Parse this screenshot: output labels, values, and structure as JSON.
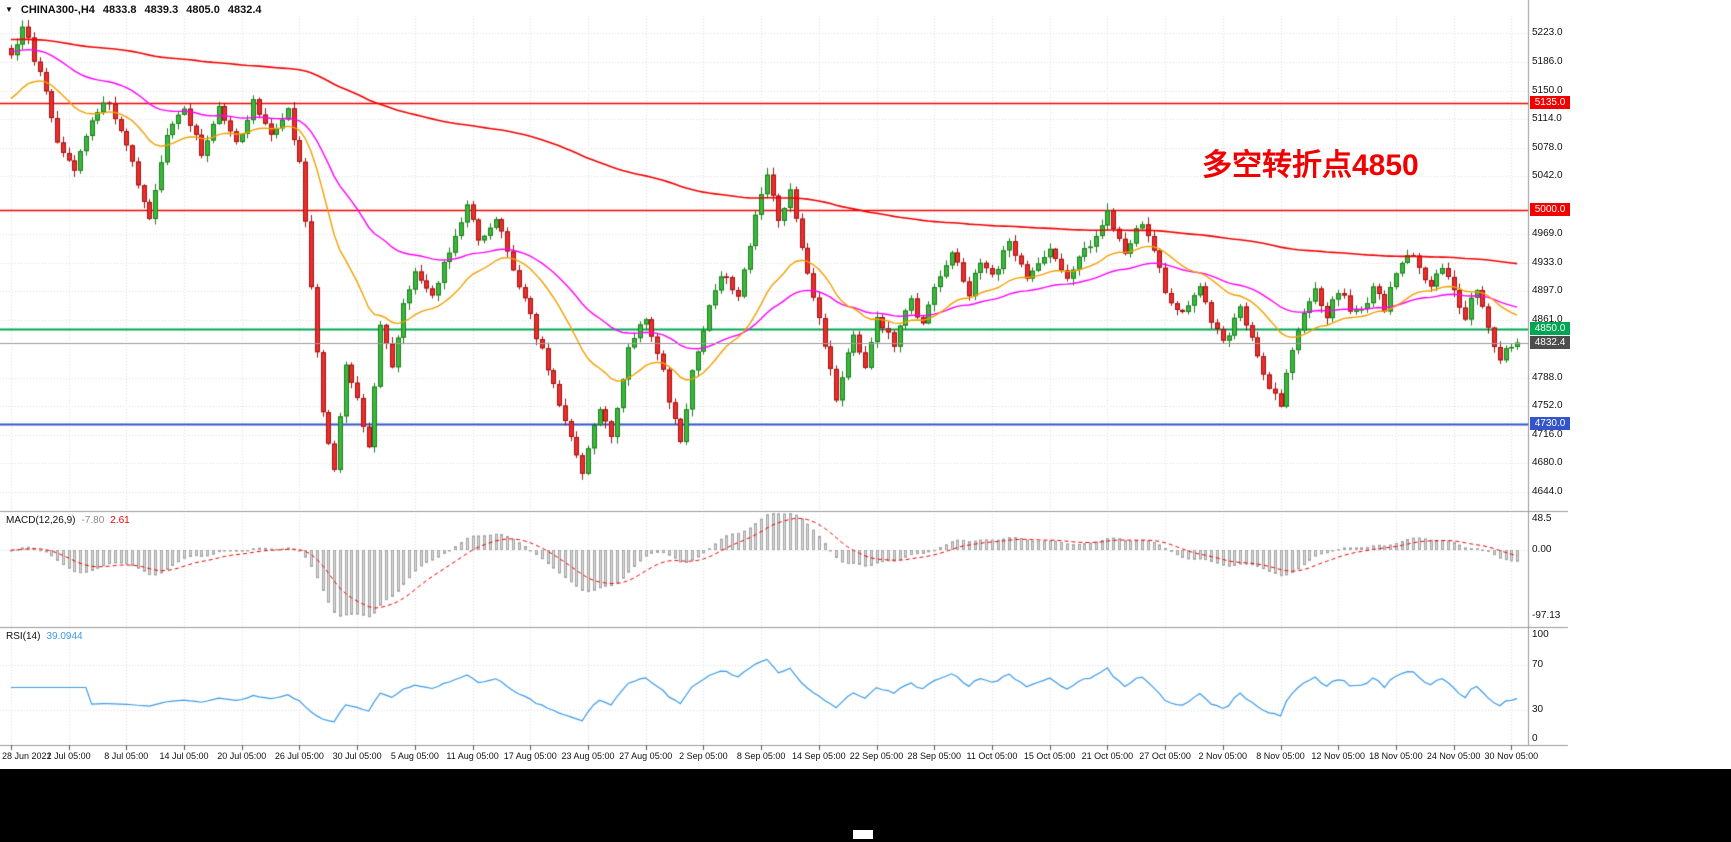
{
  "header": {
    "dropdown_icon": "▼",
    "title": "CHINA300-,H4",
    "open": "4833.8",
    "high": "4839.3",
    "low": "4805.0",
    "close": "4832.4"
  },
  "annotation": {
    "text": "多空转折点4850",
    "color": "#f20000"
  },
  "colors": {
    "up": "#3cb83c",
    "up_border": "#1e7d1e",
    "down": "#ee2c2c",
    "down_border": "#9e1414",
    "grid": "#dedede",
    "separator": "#9a9a9a",
    "macd_hist": "#d9d9d9",
    "macd_hist_border": "#a6a6a6",
    "macd_signal": "#f20000",
    "macd_value_color": "#8c8c8c",
    "rsi_line": "#3d9be9",
    "axis_text": "#111111"
  },
  "price_axis": {
    "badges": [
      {
        "text": "5135.0",
        "price": 5135.0,
        "bg": "#f20000"
      },
      {
        "text": "5000.0",
        "price": 5000.0,
        "bg": "#f20000"
      },
      {
        "text": "4850.0",
        "price": 4850.0,
        "bg": "#00a651"
      },
      {
        "text": "4832.4",
        "price": 4832.4,
        "bg": "#4d4d4d"
      },
      {
        "text": "4730.0",
        "price": 4730.0,
        "bg": "#3355cc"
      }
    ]
  },
  "indicators": {
    "macd": {
      "label": "MACD(12,26,9)",
      "value": "-7.80",
      "signal_value": "2.61",
      "ticks": [
        {
          "text": "48.5",
          "value": 48.5
        },
        {
          "text": "0.00",
          "value": 0
        },
        {
          "text": "-97.13",
          "value": -97.13
        }
      ]
    },
    "rsi": {
      "label": "RSI(14)",
      "value": "39.0944",
      "ticks": [
        {
          "text": "100",
          "value": 100
        },
        {
          "text": "70",
          "value": 70
        },
        {
          "text": "30",
          "value": 30
        },
        {
          "text": "0",
          "value": 0
        }
      ],
      "levels": [
        70,
        30
      ]
    }
  },
  "chart_data": {
    "type": "candlestick",
    "symbol": "CHINA300-",
    "timeframe": "H4",
    "bar_count": 262,
    "last_close": 4832.4,
    "y_ticks": [
      5223,
      5186,
      5150,
      5114,
      5078,
      5042,
      4969,
      4933,
      4897,
      4861,
      4788,
      4752,
      4716,
      4680,
      4644
    ],
    "y_range_visible": [
      4644,
      5223
    ],
    "x_tick_bar_step": 10,
    "x_tick_labels": [
      "28 Jun 2021",
      "2 Jul 05:00",
      "8 Jul 05:00",
      "14 Jul 05:00",
      "20 Jul 05:00",
      "26 Jul 05:00",
      "30 Jul 05:00",
      "5 Aug 05:00",
      "11 Aug 05:00",
      "17 Aug 05:00",
      "23 Aug 05:00",
      "27 Aug 05:00",
      "2 Sep 05:00",
      "8 Sep 05:00",
      "14 Sep 05:00",
      "22 Sep 05:00",
      "28 Sep 05:00",
      "11 Oct 05:00",
      "15 Oct 05:00",
      "21 Oct 05:00",
      "27 Oct 05:00",
      "2 Nov 05:00",
      "8 Nov 05:00",
      "12 Nov 05:00",
      "18 Nov 05:00",
      "24 Nov 05:00",
      "30 Nov 05:00"
    ],
    "close_waypoints": [
      [
        0,
        5195
      ],
      [
        2,
        5235
      ],
      [
        5,
        5170
      ],
      [
        8,
        5090
      ],
      [
        11,
        5050
      ],
      [
        14,
        5115
      ],
      [
        17,
        5140
      ],
      [
        20,
        5080
      ],
      [
        22,
        5035
      ],
      [
        24,
        4990
      ],
      [
        27,
        5090
      ],
      [
        30,
        5130
      ],
      [
        33,
        5070
      ],
      [
        36,
        5125
      ],
      [
        39,
        5080
      ],
      [
        42,
        5135
      ],
      [
        45,
        5090
      ],
      [
        48,
        5122
      ],
      [
        50,
        5055
      ],
      [
        52,
        4905
      ],
      [
        54,
        4745
      ],
      [
        56,
        4672
      ],
      [
        58,
        4810
      ],
      [
        60,
        4762
      ],
      [
        62,
        4700
      ],
      [
        64,
        4850
      ],
      [
        66,
        4802
      ],
      [
        68,
        4878
      ],
      [
        70,
        4920
      ],
      [
        73,
        4892
      ],
      [
        76,
        4950
      ],
      [
        79,
        5002
      ],
      [
        81,
        4962
      ],
      [
        84,
        4992
      ],
      [
        87,
        4922
      ],
      [
        90,
        4862
      ],
      [
        93,
        4802
      ],
      [
        96,
        4732
      ],
      [
        99,
        4668
      ],
      [
        102,
        4752
      ],
      [
        104,
        4712
      ],
      [
        107,
        4830
      ],
      [
        110,
        4862
      ],
      [
        113,
        4792
      ],
      [
        116,
        4706
      ],
      [
        118,
        4792
      ],
      [
        120,
        4852
      ],
      [
        123,
        4922
      ],
      [
        126,
        4892
      ],
      [
        129,
        4992
      ],
      [
        131,
        5038
      ],
      [
        133,
        4988
      ],
      [
        135,
        5026
      ],
      [
        137,
        4952
      ],
      [
        140,
        4862
      ],
      [
        143,
        4766
      ],
      [
        146,
        4840
      ],
      [
        148,
        4806
      ],
      [
        150,
        4866
      ],
      [
        153,
        4832
      ],
      [
        156,
        4886
      ],
      [
        158,
        4852
      ],
      [
        160,
        4906
      ],
      [
        163,
        4946
      ],
      [
        166,
        4896
      ],
      [
        168,
        4936
      ],
      [
        170,
        4916
      ],
      [
        173,
        4956
      ],
      [
        176,
        4916
      ],
      [
        180,
        4956
      ],
      [
        183,
        4916
      ],
      [
        186,
        4946
      ],
      [
        190,
        4996
      ],
      [
        193,
        4946
      ],
      [
        196,
        4986
      ],
      [
        198,
        4946
      ],
      [
        200,
        4896
      ],
      [
        203,
        4866
      ],
      [
        206,
        4902
      ],
      [
        208,
        4856
      ],
      [
        210,
        4832
      ],
      [
        213,
        4872
      ],
      [
        216,
        4816
      ],
      [
        218,
        4776
      ],
      [
        220,
        4756
      ],
      [
        223,
        4852
      ],
      [
        226,
        4902
      ],
      [
        228,
        4868
      ],
      [
        230,
        4898
      ],
      [
        233,
        4868
      ],
      [
        236,
        4898
      ],
      [
        238,
        4878
      ],
      [
        240,
        4918
      ],
      [
        243,
        4946
      ],
      [
        246,
        4898
      ],
      [
        248,
        4928
      ],
      [
        250,
        4898
      ],
      [
        252,
        4868
      ],
      [
        254,
        4898
      ],
      [
        256,
        4848
      ],
      [
        258,
        4815
      ],
      [
        261,
        4832.4
      ]
    ],
    "noise": {
      "seed": 9,
      "close_amp": 13,
      "wick_amp": 8
    },
    "levels": [
      {
        "price": 5135.0,
        "color": "#f20000",
        "width": 1.4
      },
      {
        "price": 5000.0,
        "color": "#f20000",
        "width": 1.4
      },
      {
        "price": 4850.0,
        "color": "#00a651",
        "width": 1.8
      },
      {
        "price": 4832.4,
        "color": "#9a9a9a",
        "width": 1,
        "current": true
      },
      {
        "price": 4730.0,
        "color": "#3355cc",
        "width": 1.8
      }
    ],
    "moving_averages": [
      {
        "name": "ma-slow",
        "period": 240,
        "color": "#f20000",
        "seed": 5215,
        "width": 1.6
      },
      {
        "name": "ma-mid",
        "period": 48,
        "color": "#ff00ff",
        "seed": 5200,
        "width": 1.4
      },
      {
        "name": "ma-fast",
        "period": 22,
        "color": "#f0a000",
        "seed": 5135,
        "width": 1.4
      }
    ],
    "macd": {
      "fast": 12,
      "slow": 26,
      "signal": 9
    },
    "rsi_period": 14
  }
}
